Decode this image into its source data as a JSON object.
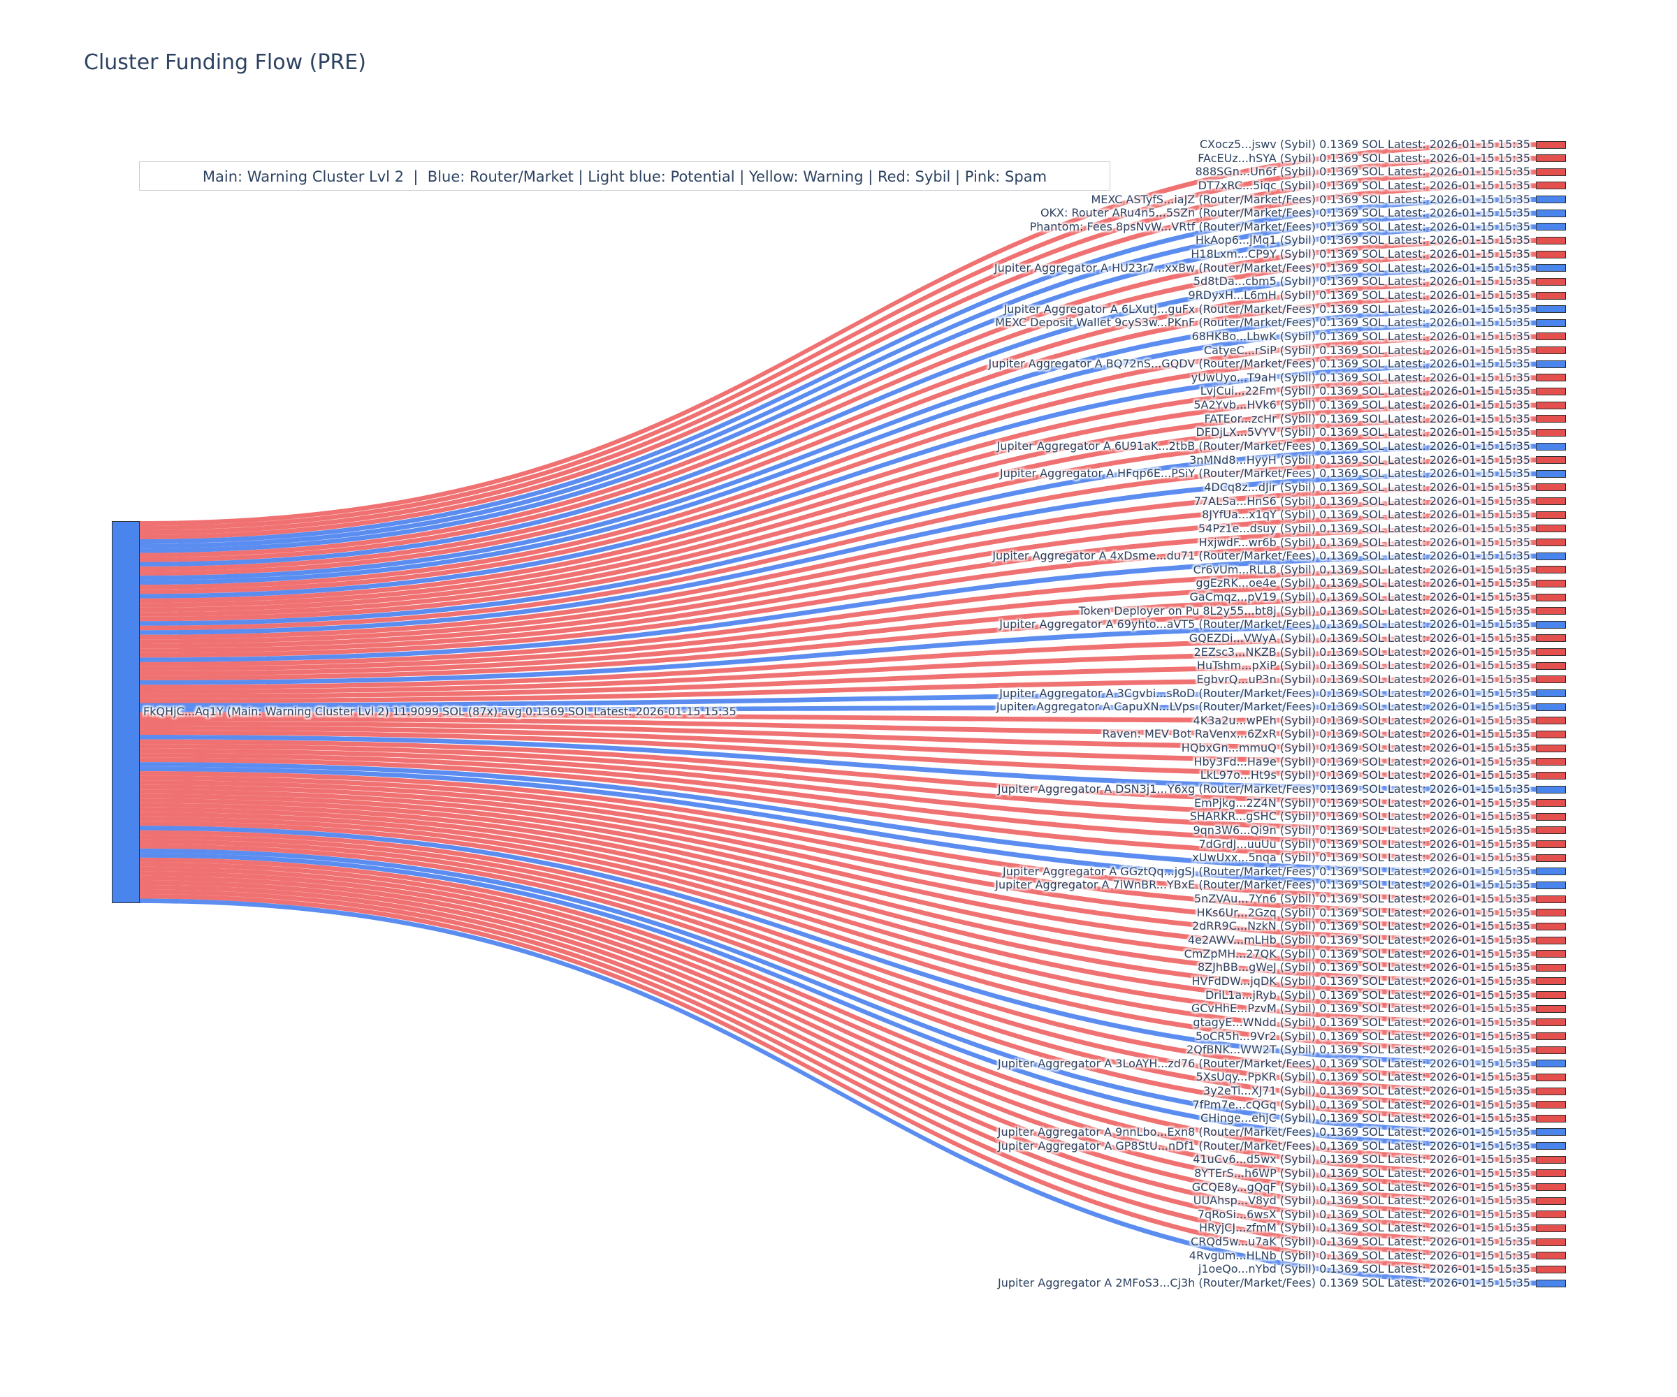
{
  "title": "Cluster Funding Flow (PRE)",
  "legend": "Main: Warning Cluster Lvl 2  |  Blue: Router/Market | Light blue: Potential | Yellow: Warning | Red: Sybil | Pink: Spam",
  "colors": {
    "title_text": "#2d4261",
    "sybil_red": "#e3504e",
    "router_blue": "#4a85ed",
    "link_red": "rgba(236,77,77,0.8)",
    "link_blue": "rgba(62,120,237,0.85)",
    "node_border": "#2d2d2d"
  },
  "chart_data": {
    "type": "sankey",
    "title": "Cluster Funding Flow (PRE)",
    "source_node": {
      "label": "FkQHjC...Aq1Y (Main: Warning Cluster Lvl 2) 11.9099 SOL (87x) avg 0.1369 SOL Latest: 2026-01-15 15:35",
      "total_sol": "11.9099 SOL",
      "tx_count": "87x",
      "avg": "avg 0.1369 SOL"
    },
    "amount_text": "0.1369 SOL",
    "latest_text": "Latest: 2026-01-15 15:35",
    "link_value_sol": 0.1369,
    "types": {
      "sybil": {
        "tag": "(Sybil)",
        "bar_color": "#e3504e",
        "link_color": "rgba(236,77,77,0.8)"
      },
      "router": {
        "tag": "(Router/Market/Fees)",
        "bar_color": "#4a85ed",
        "link_color": "rgba(62,120,237,0.85)"
      }
    },
    "targets": [
      {
        "name": "CXocz5...jswv",
        "type": "sybil"
      },
      {
        "name": "FAcEUz...hSYA",
        "type": "sybil"
      },
      {
        "name": "888SGn...Un6f",
        "type": "sybil"
      },
      {
        "name": "DT7xRC...5iqc",
        "type": "sybil"
      },
      {
        "name": "MEXC ASTyfS...iaJZ",
        "type": "router"
      },
      {
        "name": "OKX: Router ARu4n5...5SZn",
        "type": "router"
      },
      {
        "name": "Phantom: Fees 8psNvW...VRtf",
        "type": "router"
      },
      {
        "name": "HkAop6...jMq1",
        "type": "sybil"
      },
      {
        "name": "H18Lxm...CP9Y",
        "type": "sybil"
      },
      {
        "name": "Jupiter Aggregator A HU23r7...xxBw",
        "type": "router"
      },
      {
        "name": "5d8tDa...cbm5",
        "type": "sybil"
      },
      {
        "name": "9RDyxH...L6mH",
        "type": "sybil"
      },
      {
        "name": "Jupiter Aggregator A 6LXutJ...guFx",
        "type": "router"
      },
      {
        "name": "MEXC Deposit Wallet 9cyS3w...PKnF",
        "type": "router"
      },
      {
        "name": "68HKBo...LbwK",
        "type": "sybil"
      },
      {
        "name": "CatyeC...rSiP",
        "type": "sybil"
      },
      {
        "name": "Jupiter Aggregator A BQ72nS...GQDV",
        "type": "router"
      },
      {
        "name": "yUwUyo...T9aH",
        "type": "sybil"
      },
      {
        "name": "LvjCui...22Fm",
        "type": "sybil"
      },
      {
        "name": "5A2Yvb...HVk6",
        "type": "sybil"
      },
      {
        "name": "FATEor...zcHr",
        "type": "sybil"
      },
      {
        "name": "DFDjLX...5VYV",
        "type": "sybil"
      },
      {
        "name": "Jupiter Aggregator A 6U91aK...2tbB",
        "type": "router"
      },
      {
        "name": "3nMNd8...HyyH",
        "type": "sybil"
      },
      {
        "name": "Jupiter Aggregator A HFqp6E...PSiY",
        "type": "router"
      },
      {
        "name": "4DCq8z...dJir",
        "type": "sybil"
      },
      {
        "name": "77ALSa...HnS6",
        "type": "sybil"
      },
      {
        "name": "8JYfUa...x1qY",
        "type": "sybil"
      },
      {
        "name": "54Pz1e...dsuy",
        "type": "sybil"
      },
      {
        "name": "HxjwdF...wr6b",
        "type": "sybil"
      },
      {
        "name": "Jupiter Aggregator A 4xDsme...du71",
        "type": "router"
      },
      {
        "name": "Cr6vUm...RLL8",
        "type": "sybil"
      },
      {
        "name": "ggEzRK...oe4e",
        "type": "sybil"
      },
      {
        "name": "GaCmqz...pV19",
        "type": "sybil"
      },
      {
        "name": "Token Deployer on Pu 8L2y55...bt8j",
        "type": "sybil"
      },
      {
        "name": "Jupiter Aggregator A 69yhto...aVT5",
        "type": "router"
      },
      {
        "name": "GQEZDi...VWyA",
        "type": "sybil"
      },
      {
        "name": "2EZsc3...NKZB",
        "type": "sybil"
      },
      {
        "name": "HuTshm...pXiP",
        "type": "sybil"
      },
      {
        "name": "EgbvrQ...uP3n",
        "type": "sybil"
      },
      {
        "name": "Jupiter Aggregator A 3Cgvbi...sRoD",
        "type": "router"
      },
      {
        "name": "Jupiter Aggregator A CapuXN...LVps",
        "type": "router"
      },
      {
        "name": "4K3a2u...wPEh",
        "type": "sybil"
      },
      {
        "name": "Raven: MEV Bot RaVenx...6ZxR",
        "type": "sybil"
      },
      {
        "name": "HQbxGn...mmuQ",
        "type": "sybil"
      },
      {
        "name": "Hby3Fd...Ha9e",
        "type": "sybil"
      },
      {
        "name": "LkL97o...Ht9s",
        "type": "sybil"
      },
      {
        "name": "Jupiter Aggregator A DSN3j1...Y6xg",
        "type": "router"
      },
      {
        "name": "EmPjkg...2Z4N",
        "type": "sybil"
      },
      {
        "name": "SHARKR...gSHC",
        "type": "sybil"
      },
      {
        "name": "9qn3W6...Qi9n",
        "type": "sybil"
      },
      {
        "name": "7dGrdJ...uuUu",
        "type": "sybil"
      },
      {
        "name": "xUwUxx...5nqa",
        "type": "sybil"
      },
      {
        "name": "Jupiter Aggregator A GGztQq...jgSJ",
        "type": "router"
      },
      {
        "name": "Jupiter Aggregator A 7iWnBR...YBxE",
        "type": "router"
      },
      {
        "name": "5nZVAu...7Yn6",
        "type": "sybil"
      },
      {
        "name": "HKs6Ur...2Gzq",
        "type": "sybil"
      },
      {
        "name": "2dRR9C...NzkN",
        "type": "sybil"
      },
      {
        "name": "4e2AWV...mLHb",
        "type": "sybil"
      },
      {
        "name": "CmZpMH...27QK",
        "type": "sybil"
      },
      {
        "name": "8ZJhBB...gWeJ",
        "type": "sybil"
      },
      {
        "name": "HVFdDW...jqDK",
        "type": "sybil"
      },
      {
        "name": "DriL1a...jRyb",
        "type": "sybil"
      },
      {
        "name": "GCvHhE...PzvM",
        "type": "sybil"
      },
      {
        "name": "gtagyE...WNdd",
        "type": "sybil"
      },
      {
        "name": "5oCR5h...9Vr2",
        "type": "sybil"
      },
      {
        "name": "2QfBNK...WW2T",
        "type": "sybil"
      },
      {
        "name": "Jupiter Aggregator A 3LoAYH...zd76",
        "type": "router"
      },
      {
        "name": "5XsUqy...PpKR",
        "type": "sybil"
      },
      {
        "name": "3y2eTi...XJ71",
        "type": "sybil"
      },
      {
        "name": "7fPm7e...cQGq",
        "type": "sybil"
      },
      {
        "name": "CHinge...ehjC",
        "type": "sybil"
      },
      {
        "name": "Jupiter Aggregator A 9nnLbo...Exn8",
        "type": "router"
      },
      {
        "name": "Jupiter Aggregator A GP8StU...nDf1",
        "type": "router"
      },
      {
        "name": "41uCv6...d5wx",
        "type": "sybil"
      },
      {
        "name": "8YTErS...h6WP",
        "type": "sybil"
      },
      {
        "name": "GCQE8y...gQqF",
        "type": "sybil"
      },
      {
        "name": "UUAhsp...V8yd",
        "type": "sybil"
      },
      {
        "name": "7qRoSi...6wsX",
        "type": "sybil"
      },
      {
        "name": "HRyjCJ...zfmM",
        "type": "sybil"
      },
      {
        "name": "CRQd5w...u7aK",
        "type": "sybil"
      },
      {
        "name": "4Rvgum...HLNb",
        "type": "sybil"
      },
      {
        "name": "j1oeQo...nYbd",
        "type": "sybil"
      },
      {
        "name": "Jupiter Aggregator A 2MFoS3...Cj3h",
        "type": "router"
      }
    ]
  }
}
